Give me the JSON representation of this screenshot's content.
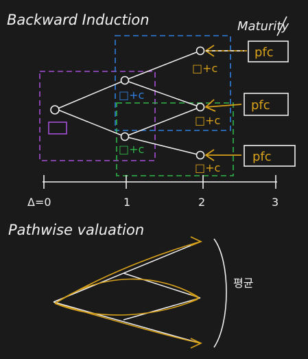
{
  "headings": {
    "backward": "Backward Induction",
    "maturity": "Maturity",
    "pathwise": "Pathwise valuation",
    "average": "평균"
  },
  "time_axis": {
    "ticks": [
      "Δ=0",
      "1",
      "2",
      "3"
    ]
  },
  "node_labels": {
    "payoff": "pfc",
    "node_value": "□+c"
  },
  "colors": {
    "background": "#1a1a1a",
    "ink": "#f2f2f2",
    "purple": "#a64fd6",
    "blue": "#2f7fe0",
    "green": "#2fb84a",
    "gold": "#d9a21b"
  }
}
